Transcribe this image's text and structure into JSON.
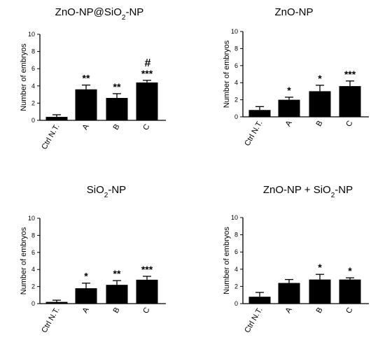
{
  "figure": {
    "background": "#ffffff",
    "bar_color": "#000000"
  },
  "chart_data": [
    {
      "type": "bar",
      "title": "ZnO-NP@SiO₂-NP",
      "ylabel": "Number of embryos",
      "xlabel": "",
      "ylim": [
        0,
        10
      ],
      "yticks": [
        "0",
        "2",
        "4",
        "6",
        "8",
        "10"
      ],
      "categories": [
        "Ctrl N.T.",
        "A",
        "B",
        "C"
      ],
      "values": [
        0.4,
        3.6,
        2.6,
        4.4
      ],
      "errors": [
        0.25,
        0.5,
        0.5,
        0.25
      ],
      "significance": [
        "",
        "**",
        "**",
        "***"
      ],
      "extra_marks": [
        "",
        "",
        "",
        "#"
      ],
      "grid": false,
      "legend": "none"
    },
    {
      "type": "bar",
      "title": "ZnO-NP",
      "ylabel": "Number of embryos",
      "xlabel": "",
      "ylim": [
        0,
        10
      ],
      "yticks": [
        "0",
        "2",
        "4",
        "6",
        "8",
        "10"
      ],
      "categories": [
        "Ctrl N.T.",
        "A",
        "B",
        "C"
      ],
      "values": [
        0.8,
        2.0,
        3.0,
        3.6
      ],
      "errors": [
        0.4,
        0.3,
        0.7,
        0.6
      ],
      "significance": [
        "",
        "*",
        "*",
        "***"
      ],
      "extra_marks": [
        "",
        "",
        "",
        ""
      ],
      "grid": false,
      "legend": "none"
    },
    {
      "type": "bar",
      "title": "SiO₂-NP",
      "ylabel": "Number of embryos",
      "xlabel": "",
      "ylim": [
        0,
        10
      ],
      "yticks": [
        "0",
        "2",
        "4",
        "6",
        "8",
        "10"
      ],
      "categories": [
        "Ctrl N.T.",
        "A",
        "B",
        "C"
      ],
      "values": [
        0.2,
        1.8,
        2.2,
        2.8
      ],
      "errors": [
        0.2,
        0.6,
        0.5,
        0.4
      ],
      "significance": [
        "",
        "*",
        "**",
        "***"
      ],
      "extra_marks": [
        "",
        "",
        "",
        ""
      ],
      "grid": false,
      "legend": "none"
    },
    {
      "type": "bar",
      "title": "ZnO-NP + SiO₂-NP",
      "ylabel": "Number of embryos",
      "xlabel": "",
      "ylim": [
        0,
        10
      ],
      "yticks": [
        "0",
        "2",
        "4",
        "6",
        "8",
        "10"
      ],
      "categories": [
        "Ctrl N.T.",
        "A",
        "B",
        "C"
      ],
      "values": [
        0.8,
        2.4,
        2.8,
        2.8
      ],
      "errors": [
        0.5,
        0.4,
        0.6,
        0.2
      ],
      "significance": [
        "",
        "",
        "*",
        "*"
      ],
      "extra_marks": [
        "",
        "",
        "",
        ""
      ],
      "grid": false,
      "legend": "none"
    }
  ]
}
